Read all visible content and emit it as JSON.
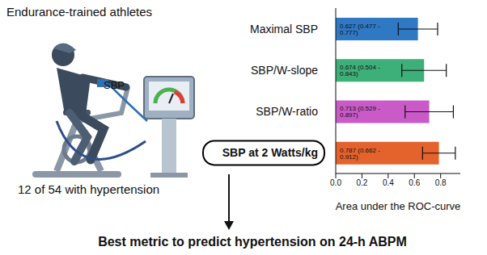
{
  "illustration": {
    "title": "Endurance-trained athletes",
    "monitor_label": "SBP",
    "subtitle": "12 of 54 with hypertension"
  },
  "chart_data": {
    "type": "bar",
    "orientation": "horizontal",
    "categories": [
      "Maximal SBP",
      "SBP/W-slope",
      "SBP/W-ratio",
      "SBP at 2 Watts/kg"
    ],
    "values": [
      0.627,
      0.674,
      0.713,
      0.787
    ],
    "value_labels": [
      "0.627 (0.477 - 0.777)",
      "0.674 (0.504 - 0.843)",
      "0.713 (0.529 - 0.897)",
      "0.787 (0.662 - 0.912)"
    ],
    "ci_lower": [
      0.477,
      0.504,
      0.529,
      0.662
    ],
    "ci_upper": [
      0.777,
      0.843,
      0.897,
      0.912
    ],
    "colors": [
      "#2f78c4",
      "#3daf78",
      "#c95ac8",
      "#e4622c"
    ],
    "xlim": [
      0,
      0.95
    ],
    "xticks": [
      {
        "value": 0,
        "label": "0.0"
      },
      0.2,
      0.4,
      0.6,
      0.8
    ],
    "x_label": "Area under the ROC-curve",
    "data_labels": true
  },
  "caption": "Best metric to predict hypertension on 24-h ABPM"
}
